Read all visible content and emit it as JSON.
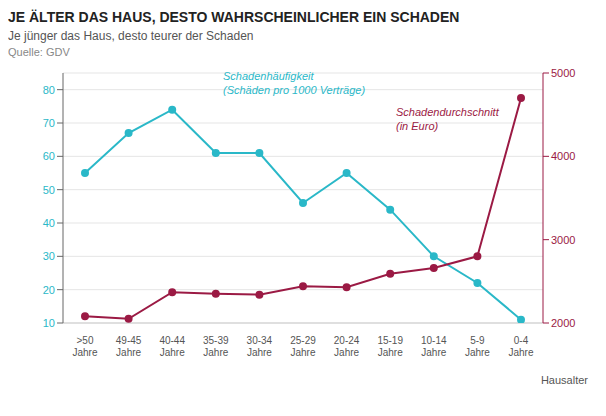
{
  "chart_data": {
    "type": "line",
    "title": "JE ÄLTER DAS HAUS, DESTO WAHRSCHEINLICHER EIN SCHADEN",
    "subtitle": "Je jünger das Haus, desto teurer der Schaden",
    "source": "Quelle: GDV",
    "xlabel": "Hausalter",
    "categories": [
      ">50\nJahre",
      "49-45\nJahre",
      "40-44\nJahre",
      "35-39\nJahre",
      "30-34\nJahre",
      "25-29\nJahre",
      "20-24\nJahre",
      "15-19\nJahre",
      "10-14\nJahre",
      "5-9\nJahre",
      "0-4\nJahre"
    ],
    "series": [
      {
        "name": "Schadenhäufigkeit\n(Schäden pro 1000 Verträge)",
        "color": "#2ab8c8",
        "values": [
          55,
          67,
          74,
          61,
          61,
          46,
          55,
          44,
          30,
          22,
          11
        ],
        "marker": "circle",
        "line_style": "solid"
      },
      {
        "name": "Schadendurchschnitt\n(in Euro)",
        "color": "#9b1a44",
        "values": [
          2080,
          2050,
          2370,
          2350,
          2340,
          2440,
          2430,
          2590,
          2660,
          2800,
          4700
        ],
        "axis": "y2",
        "marker": "circle",
        "line_style": "solid"
      }
    ],
    "ylim": [
      10,
      85
    ],
    "yticks": [
      10,
      20,
      30,
      40,
      50,
      60,
      70,
      80
    ],
    "y2lim": [
      2000,
      5000
    ],
    "y2ticks": [
      2000,
      3000,
      4000,
      5000
    ],
    "grid": true
  }
}
